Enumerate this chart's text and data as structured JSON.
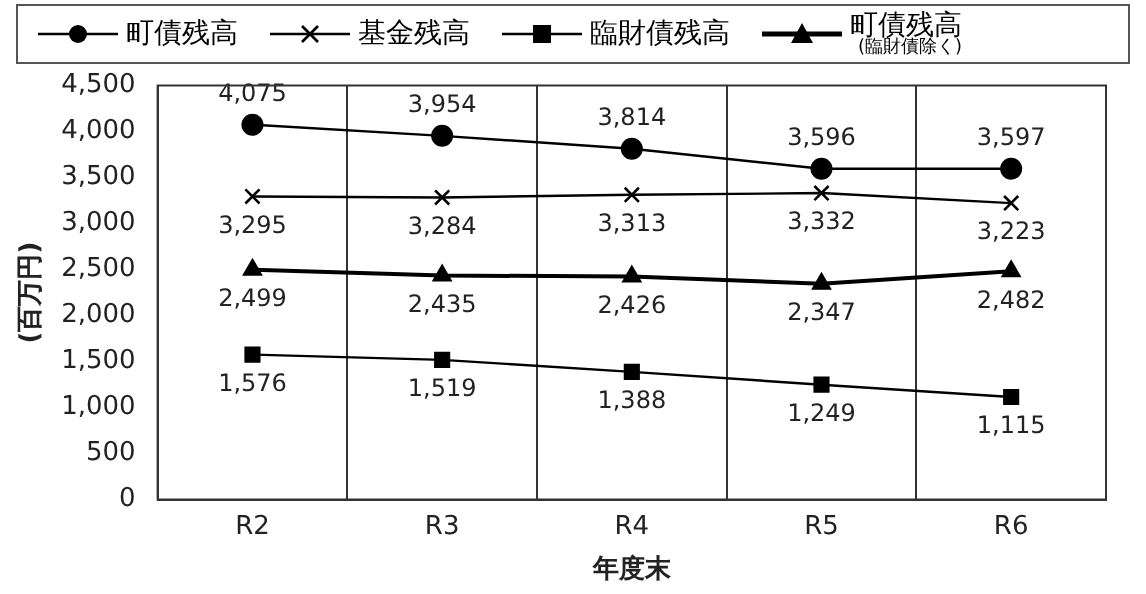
{
  "chart_data": {
    "type": "line",
    "xlabel": "年度末",
    "ylabel": "(百万円)",
    "categories": [
      "R2",
      "R3",
      "R4",
      "R5",
      "R6"
    ],
    "series": [
      {
        "name": "町債残高",
        "color": "#000000",
        "marker": "circle",
        "values": [
          4075,
          3954,
          3814,
          3596,
          3597
        ],
        "value_labels": [
          "4,075",
          "3,954",
          "3,814",
          "3,596",
          "3,597"
        ]
      },
      {
        "name": "基金残高",
        "color": "#000000",
        "marker": "cross",
        "values": [
          3295,
          3284,
          3313,
          3332,
          3223
        ],
        "value_labels": [
          "3,295",
          "3,284",
          "3,313",
          "3,332",
          "3,223"
        ]
      },
      {
        "name": "臨財債残高",
        "color": "#000000",
        "marker": "square",
        "values": [
          1576,
          1519,
          1388,
          1249,
          1115
        ],
        "value_labels": [
          "1,576",
          "1,519",
          "1,388",
          "1,249",
          "1,115"
        ]
      },
      {
        "name": "町債残高(臨財債除く)",
        "color": "#000000",
        "marker": "triangle",
        "values": [
          2499,
          2435,
          2426,
          2347,
          2482
        ],
        "value_labels": [
          "2,499",
          "2,435",
          "2,426",
          "2,347",
          "2,482"
        ]
      }
    ],
    "ylim": [
      0,
      4500
    ],
    "yticks": [
      0,
      500,
      {
        "value": 1000,
        "label": "1,000"
      },
      {
        "value": 1500,
        "label": "1,500"
      },
      {
        "value": 2000,
        "label": "2,000"
      },
      {
        "value": 2500,
        "label": "2,500"
      },
      {
        "value": 3000,
        "label": "3,000"
      },
      {
        "value": 3500,
        "label": "3,500"
      },
      {
        "value": 4000,
        "label": "4,000"
      },
      {
        "value": 4500,
        "label": "4,500"
      }
    ],
    "grid": "x",
    "legend": "top",
    "line_style": "solid"
  }
}
